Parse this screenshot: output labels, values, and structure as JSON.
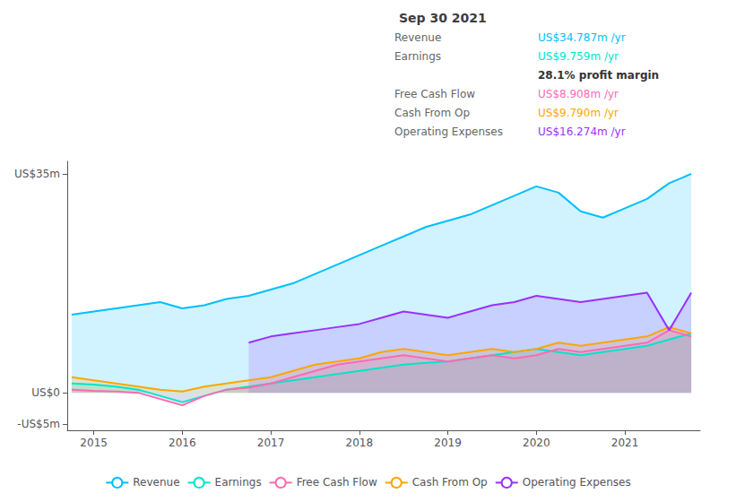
{
  "chart_data": {
    "type": "area",
    "title": "Sep 30 2021",
    "annotations": [
      {
        "label": "Revenue",
        "text": "US$34.787m /yr"
      },
      {
        "label": "Earnings",
        "text": "US$9.759m /yr"
      },
      {
        "text": "28.1% profit margin"
      },
      {
        "label": "Free Cash Flow",
        "text": "US$8.908m /yr"
      },
      {
        "label": "Cash From Op",
        "text": "US$9.790m /yr"
      },
      {
        "label": "Operating Expenses",
        "text": "US$16.274m /yr"
      }
    ],
    "x": [
      2014.75,
      2015.0,
      2015.25,
      2015.5,
      2015.75,
      2016.0,
      2016.25,
      2016.5,
      2016.75,
      2017.0,
      2017.25,
      2017.5,
      2017.75,
      2018.0,
      2018.25,
      2018.5,
      2018.75,
      2019.0,
      2019.25,
      2019.5,
      2019.75,
      2020.0,
      2020.25,
      2020.5,
      2020.75,
      2021.0,
      2021.25,
      2021.5,
      2021.75
    ],
    "series": [
      {
        "name": "Revenue",
        "color": "#00bfff",
        "values": [
          12.5,
          13.0,
          13.5,
          14.0,
          14.5,
          13.5,
          14.0,
          15.0,
          15.5,
          16.5,
          17.5,
          19.0,
          20.5,
          22.0,
          23.5,
          25.0,
          26.5,
          27.5,
          28.5,
          30.0,
          31.5,
          33.0,
          32.0,
          29.0,
          28.0,
          29.5,
          31.0,
          33.5,
          35.0
        ]
      },
      {
        "name": "Earnings",
        "color": "#00e5cc",
        "values": [
          1.5,
          1.3,
          1.0,
          0.5,
          -0.5,
          -1.5,
          -0.5,
          0.5,
          1.0,
          1.5,
          2.0,
          2.5,
          3.0,
          3.5,
          4.0,
          4.5,
          4.8,
          5.0,
          5.5,
          6.0,
          6.5,
          7.0,
          6.5,
          6.0,
          6.5,
          7.0,
          7.5,
          8.5,
          9.5
        ]
      },
      {
        "name": "Free Cash Flow",
        "color": "#ff69b4",
        "values": [
          0.5,
          0.3,
          0.2,
          0.0,
          -1.0,
          -2.0,
          -0.5,
          0.5,
          0.8,
          1.5,
          2.5,
          3.5,
          4.5,
          5.0,
          5.5,
          6.0,
          5.5,
          5.0,
          5.5,
          6.0,
          5.5,
          6.0,
          7.0,
          6.5,
          7.0,
          7.5,
          8.0,
          10.0,
          9.0
        ]
      },
      {
        "name": "Cash From Op",
        "color": "#ffa500",
        "values": [
          2.5,
          2.0,
          1.5,
          1.0,
          0.5,
          0.2,
          1.0,
          1.5,
          2.0,
          2.5,
          3.5,
          4.5,
          5.0,
          5.5,
          6.5,
          7.0,
          6.5,
          6.0,
          6.5,
          7.0,
          6.5,
          7.0,
          8.0,
          7.5,
          8.0,
          8.5,
          9.0,
          10.5,
          9.5
        ]
      },
      {
        "name": "Operating Expenses",
        "color": "#9b30ff",
        "values": [
          null,
          null,
          null,
          null,
          null,
          null,
          null,
          null,
          8.0,
          9.0,
          9.5,
          10.0,
          10.5,
          11.0,
          12.0,
          13.0,
          12.5,
          12.0,
          13.0,
          14.0,
          14.5,
          15.5,
          15.0,
          14.5,
          15.0,
          15.5,
          16.0,
          10.0,
          16.0
        ]
      }
    ],
    "xlim": [
      2014.7,
      2021.85
    ],
    "xticks": [
      2015,
      2016,
      2017,
      2018,
      2019,
      2020,
      2021
    ],
    "ylim": [
      -6,
      37
    ],
    "yticks": [
      {
        "value": -5,
        "label": "-US$5m"
      },
      {
        "value": 0,
        "label": "US$0"
      },
      {
        "value": 35,
        "label": "US$35m"
      }
    ],
    "grid": false,
    "legend": "bottom"
  }
}
